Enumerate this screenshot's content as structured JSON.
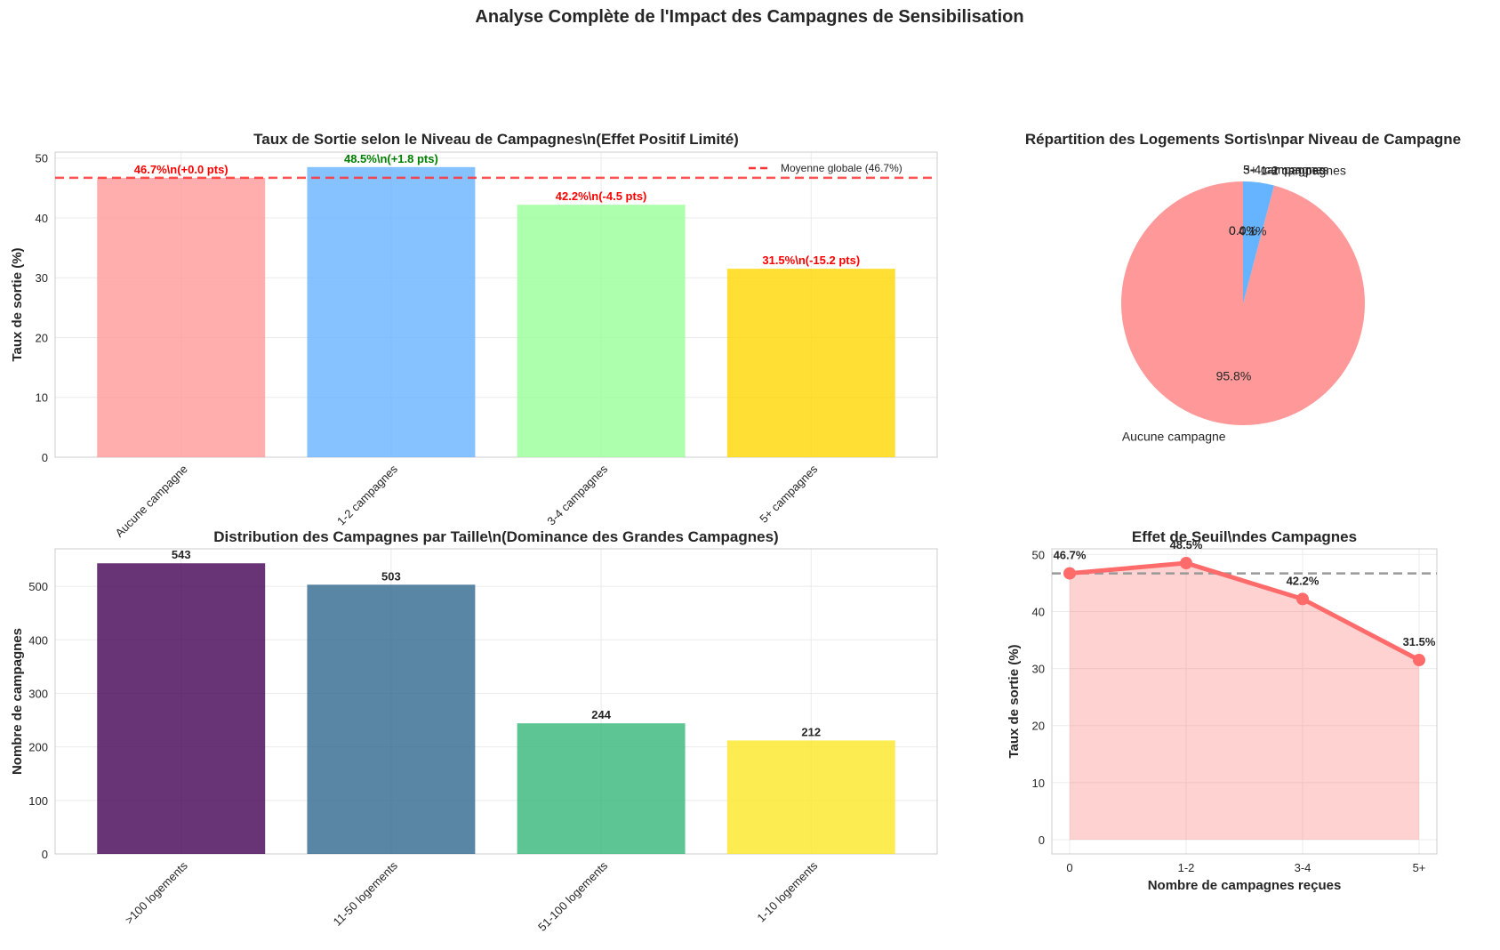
{
  "figure": {
    "suptitle": "Analyse Complète de l'Impact des Campagnes de Sensibilisation"
  },
  "chart_data": [
    {
      "id": "rate_by_level",
      "type": "bar",
      "title": "Taux de Sortie selon le Niveau de Campagnes\\n(Effet Positif Limité)",
      "xlabel": "",
      "ylabel": "Taux de sortie (%)",
      "ylim": [
        0,
        51
      ],
      "yticks": [
        0,
        10,
        20,
        30,
        40,
        50
      ],
      "categories": [
        "Aucune campagne",
        "1-2 campagnes",
        "3-4 campagnes",
        "5+ campagnes"
      ],
      "values": [
        46.7,
        48.5,
        42.2,
        31.5
      ],
      "colors": [
        "#ff9999",
        "#66b3ff",
        "#99ff99",
        "#ffd700"
      ],
      "value_labels": [
        "46.7%\\n(+0.0 pts)",
        "48.5%\\n(+1.8 pts)",
        "42.2%\\n(-4.5 pts)",
        "31.5%\\n(-15.2 pts)"
      ],
      "value_label_colors": [
        "#ff0000",
        "#008000",
        "#ff0000",
        "#ff0000"
      ],
      "reference_line": {
        "value": 46.7,
        "label": "Moyenne globale (46.7%)",
        "color": "#ff3333"
      },
      "legend_position": "top-right",
      "grid": true
    },
    {
      "id": "pie_exits",
      "type": "pie",
      "title": "Répartition des Logements Sortis\\npar Niveau de Campagne",
      "labels": [
        "Aucune campagne",
        "1-2 campagnes",
        "3-4 campagnes",
        "5+ campagnes"
      ],
      "values": [
        95.8,
        4.1,
        0.0,
        0.0
      ],
      "pct_labels": [
        "95.8%",
        "4.1%",
        "0.0%",
        "0.0%"
      ],
      "colors": [
        "#ff9999",
        "#66b3ff",
        "#99ff99",
        "#ffd700"
      ],
      "start_angle_deg": 90
    },
    {
      "id": "size_distribution",
      "type": "bar",
      "title": "Distribution des Campagnes par Taille\\n(Dominance des Grandes Campagnes)",
      "xlabel": "",
      "ylabel": "Nombre de campagnes",
      "ylim": [
        0,
        570
      ],
      "yticks": [
        0,
        100,
        200,
        300,
        400,
        500
      ],
      "categories": [
        ">100 logements",
        "11-50 logements",
        "51-100 logements",
        "1-10 logements"
      ],
      "values": [
        543,
        503,
        244,
        212
      ],
      "value_labels": [
        "543",
        "503",
        "244",
        "212"
      ],
      "colors": [
        "#440154",
        "#31688e",
        "#35b779",
        "#fde725"
      ],
      "grid": true
    },
    {
      "id": "threshold_effect",
      "type": "line",
      "title": "Effet de Seuil\\ndes Campagnes",
      "xlabel": "Nombre de campagnes reçues",
      "ylabel": "Taux de sortie (%)",
      "ylim": [
        -2.5,
        51
      ],
      "yticks": [
        0,
        10,
        20,
        30,
        40,
        50
      ],
      "x": [
        "0",
        "1-2",
        "3-4",
        "5+"
      ],
      "values": [
        46.7,
        48.5,
        42.2,
        31.5
      ],
      "point_labels": [
        "46.7%",
        "48.5%",
        "42.2%",
        "31.5%"
      ],
      "reference_line": {
        "value": 46.7,
        "color": "#999999"
      },
      "color": "#ff6b6b",
      "grid": true
    }
  ]
}
